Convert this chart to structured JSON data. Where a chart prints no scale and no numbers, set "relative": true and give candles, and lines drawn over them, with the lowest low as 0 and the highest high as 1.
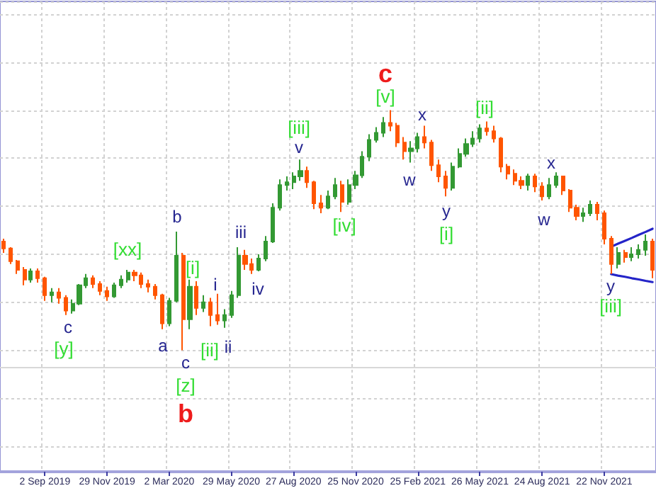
{
  "chart_data": {
    "type": "candlestick",
    "relative": true,
    "grid": true,
    "categories": [
      null,
      null,
      null,
      null,
      null,
      null,
      "2 Sep 2019",
      null,
      null,
      null,
      null,
      null,
      null,
      null,
      null,
      "29 Nov 2019",
      null,
      null,
      null,
      null,
      null,
      null,
      null,
      null,
      "2 Mar 2020",
      null,
      null,
      null,
      null,
      null,
      null,
      null,
      null,
      "29 May 2020",
      null,
      null,
      null,
      null,
      null,
      null,
      null,
      null,
      "27 Aug 2020",
      null,
      null,
      null,
      null,
      null,
      null,
      null,
      null,
      "25 Nov 2020",
      null,
      null,
      null,
      null,
      null,
      null,
      null,
      null,
      "25 Feb 2021",
      null,
      null,
      null,
      null,
      null,
      null,
      null,
      null,
      "26 May 2021",
      null,
      null,
      null,
      null,
      null,
      null,
      null,
      null,
      "24 Aug 2021",
      null,
      null,
      null,
      null,
      null,
      null,
      null,
      null,
      "22 Nov 2021",
      null,
      null,
      null,
      null,
      null,
      null,
      null
    ],
    "ohlc": [
      [
        0.453,
        0.465,
        0.406,
        0.424
      ],
      [
        0.424,
        0.429,
        0.359,
        0.371
      ],
      [
        0.371,
        0.376,
        0.318,
        0.335
      ],
      [
        0.335,
        0.347,
        0.271,
        0.294
      ],
      [
        0.294,
        0.341,
        0.282,
        0.329
      ],
      [
        0.329,
        0.341,
        0.282,
        0.3
      ],
      [
        0.3,
        0.306,
        0.206,
        0.229
      ],
      [
        0.229,
        0.259,
        0.2,
        0.241
      ],
      [
        0.241,
        0.259,
        0.194,
        0.218
      ],
      [
        0.218,
        0.229,
        0.147,
        0.165
      ],
      [
        0.165,
        0.212,
        0.153,
        0.194
      ],
      [
        0.194,
        0.276,
        0.188,
        0.271
      ],
      [
        0.271,
        0.318,
        0.259,
        0.3
      ],
      [
        0.3,
        0.312,
        0.259,
        0.276
      ],
      [
        0.276,
        0.288,
        0.229,
        0.247
      ],
      [
        0.247,
        0.265,
        0.206,
        0.224
      ],
      [
        0.224,
        0.282,
        0.218,
        0.271
      ],
      [
        0.271,
        0.312,
        0.259,
        0.294
      ],
      [
        0.294,
        0.335,
        0.282,
        0.324
      ],
      [
        0.324,
        0.335,
        0.288,
        0.312
      ],
      [
        0.312,
        0.324,
        0.259,
        0.276
      ],
      [
        0.276,
        0.294,
        0.241,
        0.265
      ],
      [
        0.265,
        0.276,
        0.212,
        0.229
      ],
      [
        0.229,
        0.235,
        0.088,
        0.112
      ],
      [
        0.112,
        0.218,
        0.1,
        0.206
      ],
      [
        0.206,
        0.494,
        0.2,
        0.394
      ],
      [
        0.394,
        0.406,
        0.0,
        0.129
      ],
      [
        0.129,
        0.294,
        0.088,
        0.265
      ],
      [
        0.265,
        0.288,
        0.147,
        0.176
      ],
      [
        0.176,
        0.229,
        0.159,
        0.2
      ],
      [
        0.2,
        0.218,
        0.1,
        0.147
      ],
      [
        0.147,
        0.235,
        0.106,
        0.124
      ],
      [
        0.124,
        0.171,
        0.094,
        0.147
      ],
      [
        0.147,
        0.247,
        0.135,
        0.229
      ],
      [
        0.229,
        0.429,
        0.218,
        0.394
      ],
      [
        0.394,
        0.418,
        0.335,
        0.359
      ],
      [
        0.359,
        0.382,
        0.318,
        0.335
      ],
      [
        0.335,
        0.4,
        0.329,
        0.382
      ],
      [
        0.382,
        0.476,
        0.371,
        0.453
      ],
      [
        0.453,
        0.612,
        0.447,
        0.594
      ],
      [
        0.594,
        0.712,
        0.582,
        0.688
      ],
      [
        0.688,
        0.724,
        0.665,
        0.7
      ],
      [
        0.7,
        0.741,
        0.671,
        0.724
      ],
      [
        0.724,
        0.794,
        0.706,
        0.747
      ],
      [
        0.747,
        0.765,
        0.676,
        0.7
      ],
      [
        0.7,
        0.706,
        0.588,
        0.612
      ],
      [
        0.612,
        0.647,
        0.571,
        0.594
      ],
      [
        0.594,
        0.665,
        0.588,
        0.641
      ],
      [
        0.641,
        0.718,
        0.629,
        0.688
      ],
      [
        0.688,
        0.706,
        0.576,
        0.618
      ],
      [
        0.618,
        0.712,
        0.606,
        0.688
      ],
      [
        0.688,
        0.747,
        0.671,
        0.729
      ],
      [
        0.729,
        0.829,
        0.718,
        0.806
      ],
      [
        0.806,
        0.9,
        0.788,
        0.876
      ],
      [
        0.876,
        0.929,
        0.865,
        0.906
      ],
      [
        0.906,
        0.971,
        0.888,
        0.947
      ],
      [
        0.947,
        1.0,
        0.912,
        0.935
      ],
      [
        0.935,
        0.947,
        0.847,
        0.865
      ],
      [
        0.865,
        0.888,
        0.794,
        0.829
      ],
      [
        0.829,
        0.871,
        0.782,
        0.841
      ],
      [
        0.841,
        0.906,
        0.824,
        0.888
      ],
      [
        0.888,
        0.935,
        0.841,
        0.865
      ],
      [
        0.865,
        0.876,
        0.747,
        0.771
      ],
      [
        0.771,
        0.794,
        0.7,
        0.724
      ],
      [
        0.724,
        0.747,
        0.641,
        0.676
      ],
      [
        0.676,
        0.782,
        0.665,
        0.765
      ],
      [
        0.765,
        0.841,
        0.759,
        0.818
      ],
      [
        0.818,
        0.882,
        0.806,
        0.859
      ],
      [
        0.859,
        0.912,
        0.847,
        0.882
      ],
      [
        0.882,
        0.941,
        0.865,
        0.924
      ],
      [
        0.924,
        0.953,
        0.894,
        0.912
      ],
      [
        0.912,
        0.935,
        0.865,
        0.882
      ],
      [
        0.882,
        0.888,
        0.741,
        0.765
      ],
      [
        0.765,
        0.776,
        0.712,
        0.735
      ],
      [
        0.735,
        0.753,
        0.688,
        0.706
      ],
      [
        0.706,
        0.724,
        0.671,
        0.688
      ],
      [
        0.688,
        0.735,
        0.665,
        0.724
      ],
      [
        0.724,
        0.735,
        0.659,
        0.682
      ],
      [
        0.682,
        0.7,
        0.624,
        0.641
      ],
      [
        0.641,
        0.718,
        0.629,
        0.688
      ],
      [
        0.688,
        0.741,
        0.676,
        0.724
      ],
      [
        0.724,
        0.724,
        0.647,
        0.665
      ],
      [
        0.665,
        0.671,
        0.576,
        0.594
      ],
      [
        0.594,
        0.606,
        0.541,
        0.559
      ],
      [
        0.559,
        0.594,
        0.535,
        0.571
      ],
      [
        0.571,
        0.624,
        0.559,
        0.606
      ],
      [
        0.606,
        0.618,
        0.541,
        0.571
      ],
      [
        0.571,
        0.582,
        0.441,
        0.465
      ],
      [
        0.465,
        0.476,
        0.318,
        0.359
      ],
      [
        0.359,
        0.429,
        0.341,
        0.406
      ],
      [
        0.406,
        0.418,
        0.365,
        0.388
      ],
      [
        0.388,
        0.429,
        0.371,
        0.4
      ],
      [
        0.4,
        0.441,
        0.382,
        0.418
      ],
      [
        0.418,
        0.482,
        0.394,
        0.453
      ],
      [
        0.453,
        0.465,
        0.3,
        0.335
      ]
    ],
    "colors": [
      "#ff5500",
      "#ff5500",
      "#ff5500",
      "#ff5500",
      "#339933",
      "#ff5500",
      "#ff5500",
      "#339933",
      "#ff5500",
      "#ff5500",
      "#339933",
      "#339933",
      "#339933",
      "#ff5500",
      "#ff5500",
      "#ff5500",
      "#339933",
      "#339933",
      "#339933",
      "#ff5500",
      "#ff5500",
      "#ff5500",
      "#ff5500",
      "#ff5500",
      "#339933",
      "#339933",
      "#ff5500",
      "#339933",
      "#ff5500",
      "#339933",
      "#ff5500",
      "#ff5500",
      "#339933",
      "#339933",
      "#339933",
      "#ff5500",
      "#ff5500",
      "#339933",
      "#339933",
      "#339933",
      "#339933",
      "#339933",
      "#339933",
      "#339933",
      "#ff5500",
      "#ff5500",
      "#ff5500",
      "#339933",
      "#339933",
      "#ff5500",
      "#339933",
      "#339933",
      "#339933",
      "#339933",
      "#339933",
      "#339933",
      "#ff5500",
      "#ff5500",
      "#ff5500",
      "#339933",
      "#339933",
      "#ff5500",
      "#ff5500",
      "#ff5500",
      "#ff5500",
      "#339933",
      "#339933",
      "#339933",
      "#339933",
      "#339933",
      "#ff5500",
      "#ff5500",
      "#ff5500",
      "#ff5500",
      "#ff5500",
      "#ff5500",
      "#339933",
      "#ff5500",
      "#ff5500",
      "#339933",
      "#339933",
      "#ff5500",
      "#ff5500",
      "#ff5500",
      "#339933",
      "#339933",
      "#ff5500",
      "#ff5500",
      "#ff5500",
      "#339933",
      "#ff5500",
      "#339933",
      "#339933",
      "#339933",
      "#ff5500"
    ],
    "series": [
      {
        "type": "line",
        "color": "#2424c8",
        "values": [
          null,
          null,
          null,
          null,
          null,
          null,
          null,
          null,
          null,
          null,
          null,
          null,
          null,
          null,
          null,
          null,
          null,
          null,
          null,
          null,
          null,
          null,
          null,
          null,
          null,
          null,
          null,
          null,
          null,
          null,
          null,
          null,
          null,
          null,
          null,
          null,
          null,
          null,
          null,
          null,
          null,
          null,
          null,
          null,
          null,
          null,
          null,
          null,
          null,
          null,
          null,
          null,
          null,
          null,
          null,
          null,
          null,
          null,
          null,
          null,
          null,
          null,
          null,
          null,
          null,
          null,
          null,
          null,
          null,
          null,
          null,
          null,
          null,
          null,
          null,
          null,
          null,
          null,
          null,
          null,
          null,
          null,
          null,
          null,
          null,
          null,
          null,
          null,
          0.431,
          0.444,
          0.456,
          0.468,
          0.481,
          0.493,
          0.506
        ]
      },
      {
        "type": "line",
        "color": "#2424c8",
        "values": [
          null,
          null,
          null,
          null,
          null,
          null,
          null,
          null,
          null,
          null,
          null,
          null,
          null,
          null,
          null,
          null,
          null,
          null,
          null,
          null,
          null,
          null,
          null,
          null,
          null,
          null,
          null,
          null,
          null,
          null,
          null,
          null,
          null,
          null,
          null,
          null,
          null,
          null,
          null,
          null,
          null,
          null,
          null,
          null,
          null,
          null,
          null,
          null,
          null,
          null,
          null,
          null,
          null,
          null,
          null,
          null,
          null,
          null,
          null,
          null,
          null,
          null,
          null,
          null,
          null,
          null,
          null,
          null,
          null,
          null,
          null,
          null,
          null,
          null,
          null,
          null,
          null,
          null,
          null,
          null,
          null,
          null,
          null,
          null,
          null,
          null,
          null,
          null,
          0.317,
          0.311,
          0.306,
          0.3,
          0.295,
          0.289,
          0.284
        ]
      }
    ],
    "ref_lines": [
      {
        "axis": "y",
        "value": -0.07,
        "color": "#d8d8d8"
      }
    ],
    "annotations": [
      "c",
      "[y]",
      "[xx]",
      "a",
      "b",
      "c",
      "[z]",
      "b",
      "[i]",
      "[ii]",
      "i",
      "ii",
      "iii",
      "iv",
      "v",
      "[iii]",
      "[iv]",
      "[v]",
      "c",
      "w",
      "x",
      "y",
      "[i]",
      "[ii]",
      "w",
      "x",
      "y",
      "[iii]"
    ]
  }
}
